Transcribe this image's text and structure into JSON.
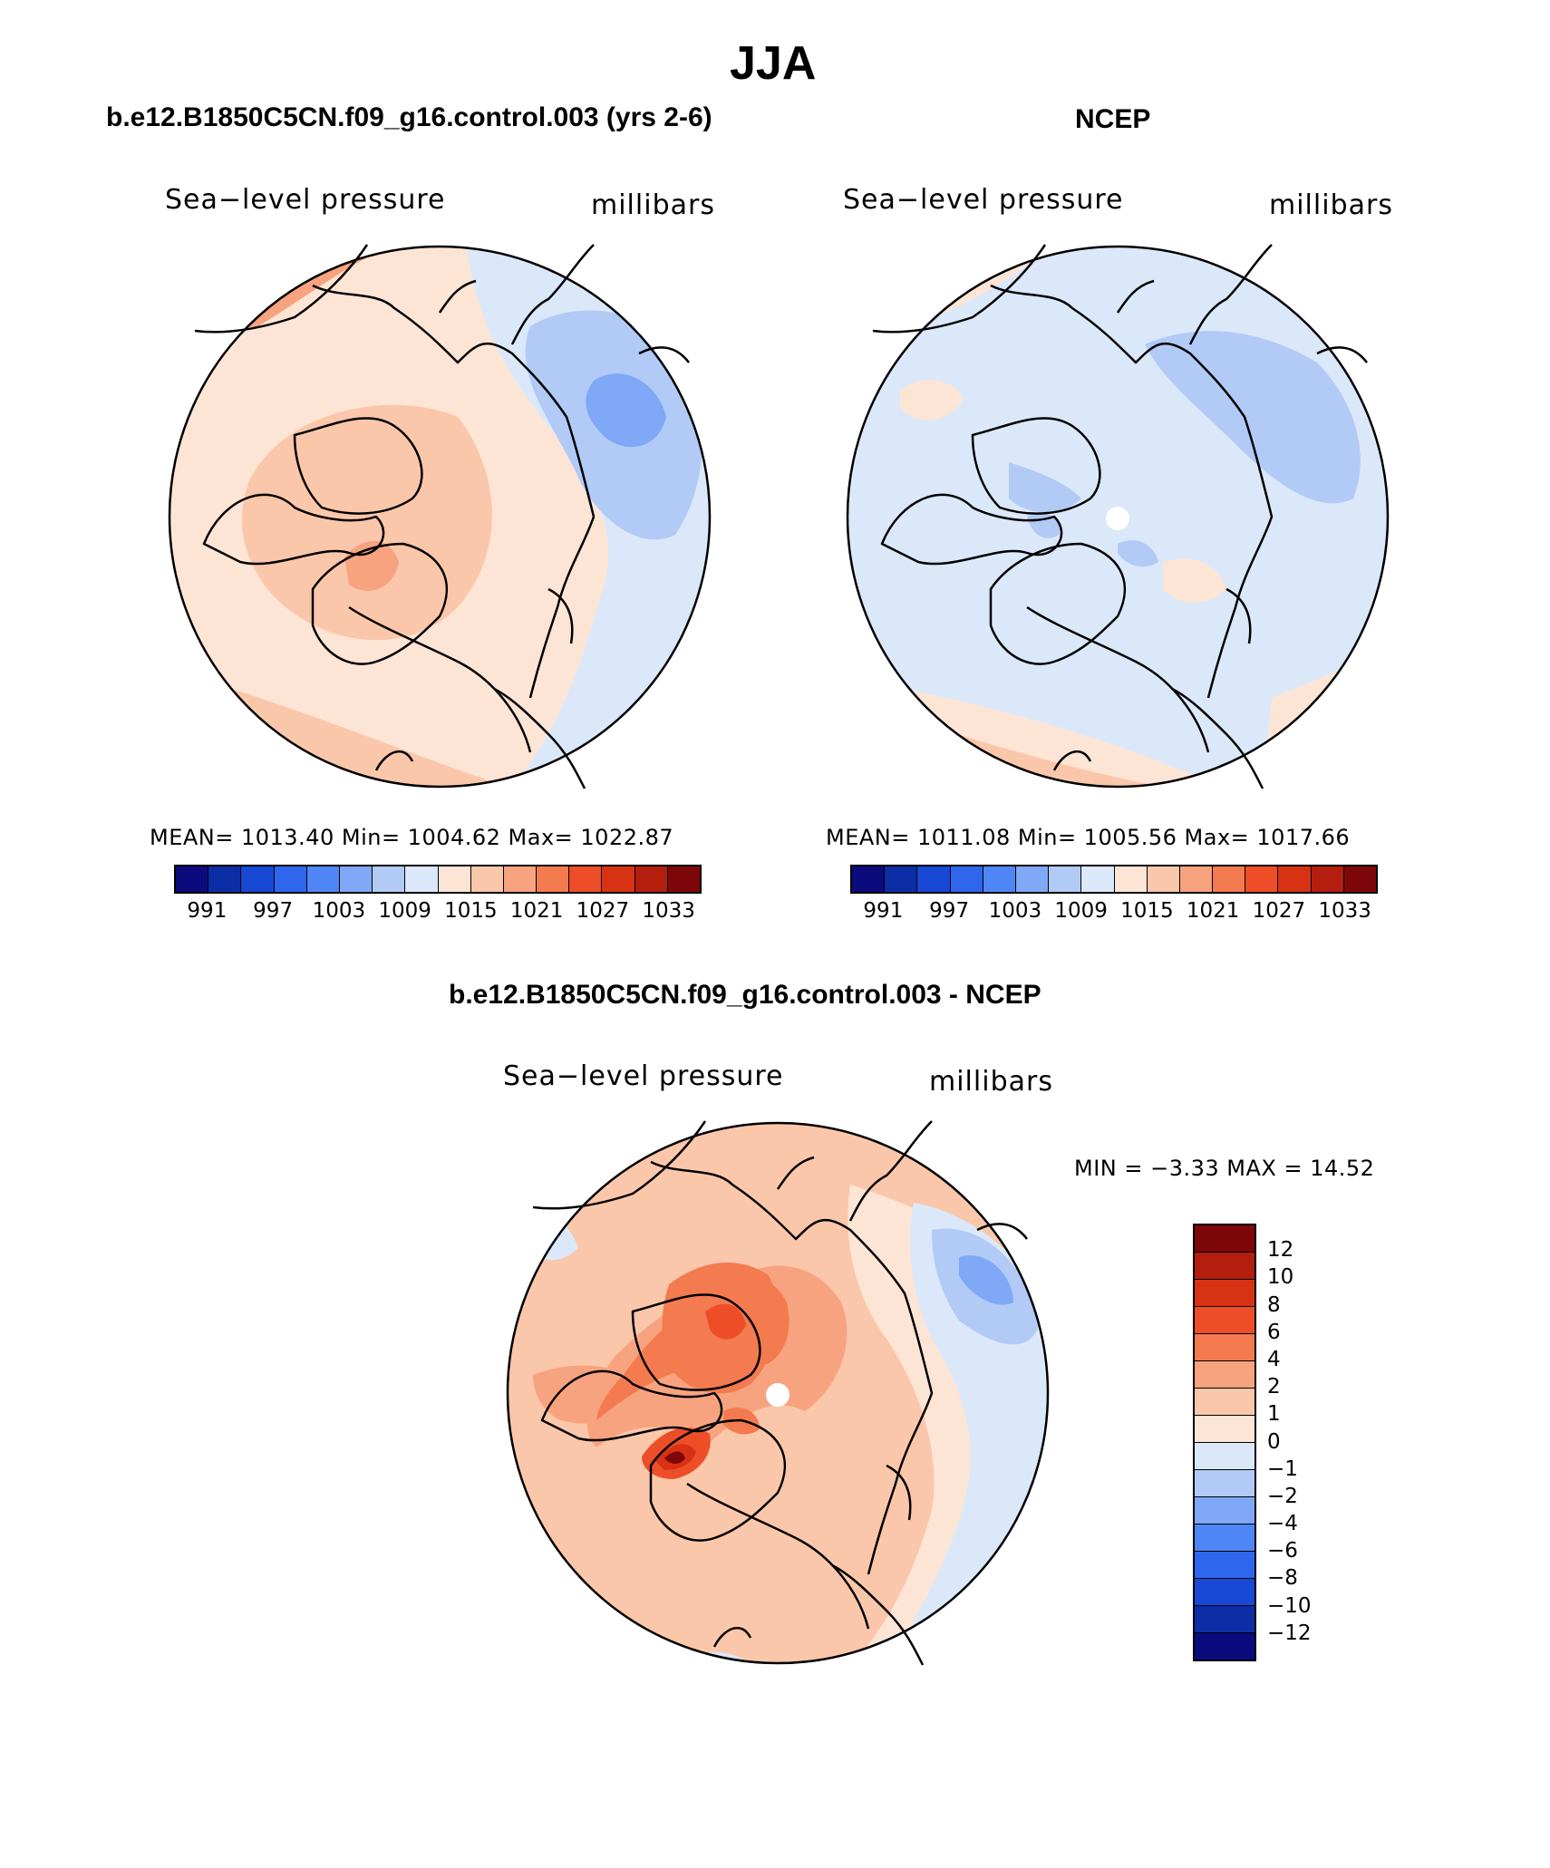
{
  "page": {
    "title": "JJA"
  },
  "panels": [
    {
      "id": "model",
      "header": "b.e12.B1850C5CN.f09_g16.control.003 (yrs 2-6)",
      "variable": "Sea−level pressure",
      "units": "millibars",
      "stats": "MEAN=  1013.40    Min=  1004.62    Max=  1022.87",
      "colorbar": {
        "colors": [
          "#0b0b7e",
          "#0b2ea6",
          "#1748d6",
          "#2f66ee",
          "#4f86f5",
          "#7fa8f7",
          "#b2caf6",
          "#dbe8f9",
          "#fde5d6",
          "#fbc7ab",
          "#f8a37f",
          "#f47a4f",
          "#ee4e27",
          "#d83214",
          "#b31e0e",
          "#7e0809"
        ],
        "labels": [
          "991",
          "997",
          "1003",
          "1009",
          "1015",
          "1021",
          "1027",
          "1033"
        ]
      }
    },
    {
      "id": "obs",
      "header": "NCEP",
      "variable": "Sea−level pressure",
      "units": "millibars",
      "stats": "MEAN=  1011.08    Min=  1005.56    Max=  1017.66",
      "colorbar": {
        "colors": [
          "#0b0b7e",
          "#0b2ea6",
          "#1748d6",
          "#2f66ee",
          "#4f86f5",
          "#7fa8f7",
          "#b2caf6",
          "#dbe8f9",
          "#fde5d6",
          "#fbc7ab",
          "#f8a37f",
          "#f47a4f",
          "#ee4e27",
          "#d83214",
          "#b31e0e",
          "#7e0809"
        ],
        "labels": [
          "991",
          "997",
          "1003",
          "1009",
          "1015",
          "1021",
          "1027",
          "1033"
        ]
      }
    },
    {
      "id": "diff",
      "header": "b.e12.B1850C5CN.f09_g16.control.003 - NCEP",
      "variable": "Sea−level pressure",
      "units": "millibars",
      "stats": "MIN =    −3.33  MAX =    14.52",
      "colorbar": {
        "colors": [
          "#7e0809",
          "#b31e0e",
          "#d83214",
          "#ee4e27",
          "#f47a4f",
          "#f8a37f",
          "#fbc7ab",
          "#fde5d6",
          "#dbe8f9",
          "#b2caf6",
          "#7fa8f7",
          "#4f86f5",
          "#2f66ee",
          "#1748d6",
          "#0b2ea6",
          "#0b0b7e"
        ],
        "labels": [
          "12",
          "10",
          "8",
          "6",
          "4",
          "2",
          "1",
          "0",
          "−1",
          "−2",
          "−4",
          "−6",
          "−8",
          "−10",
          "−12"
        ]
      }
    }
  ]
}
